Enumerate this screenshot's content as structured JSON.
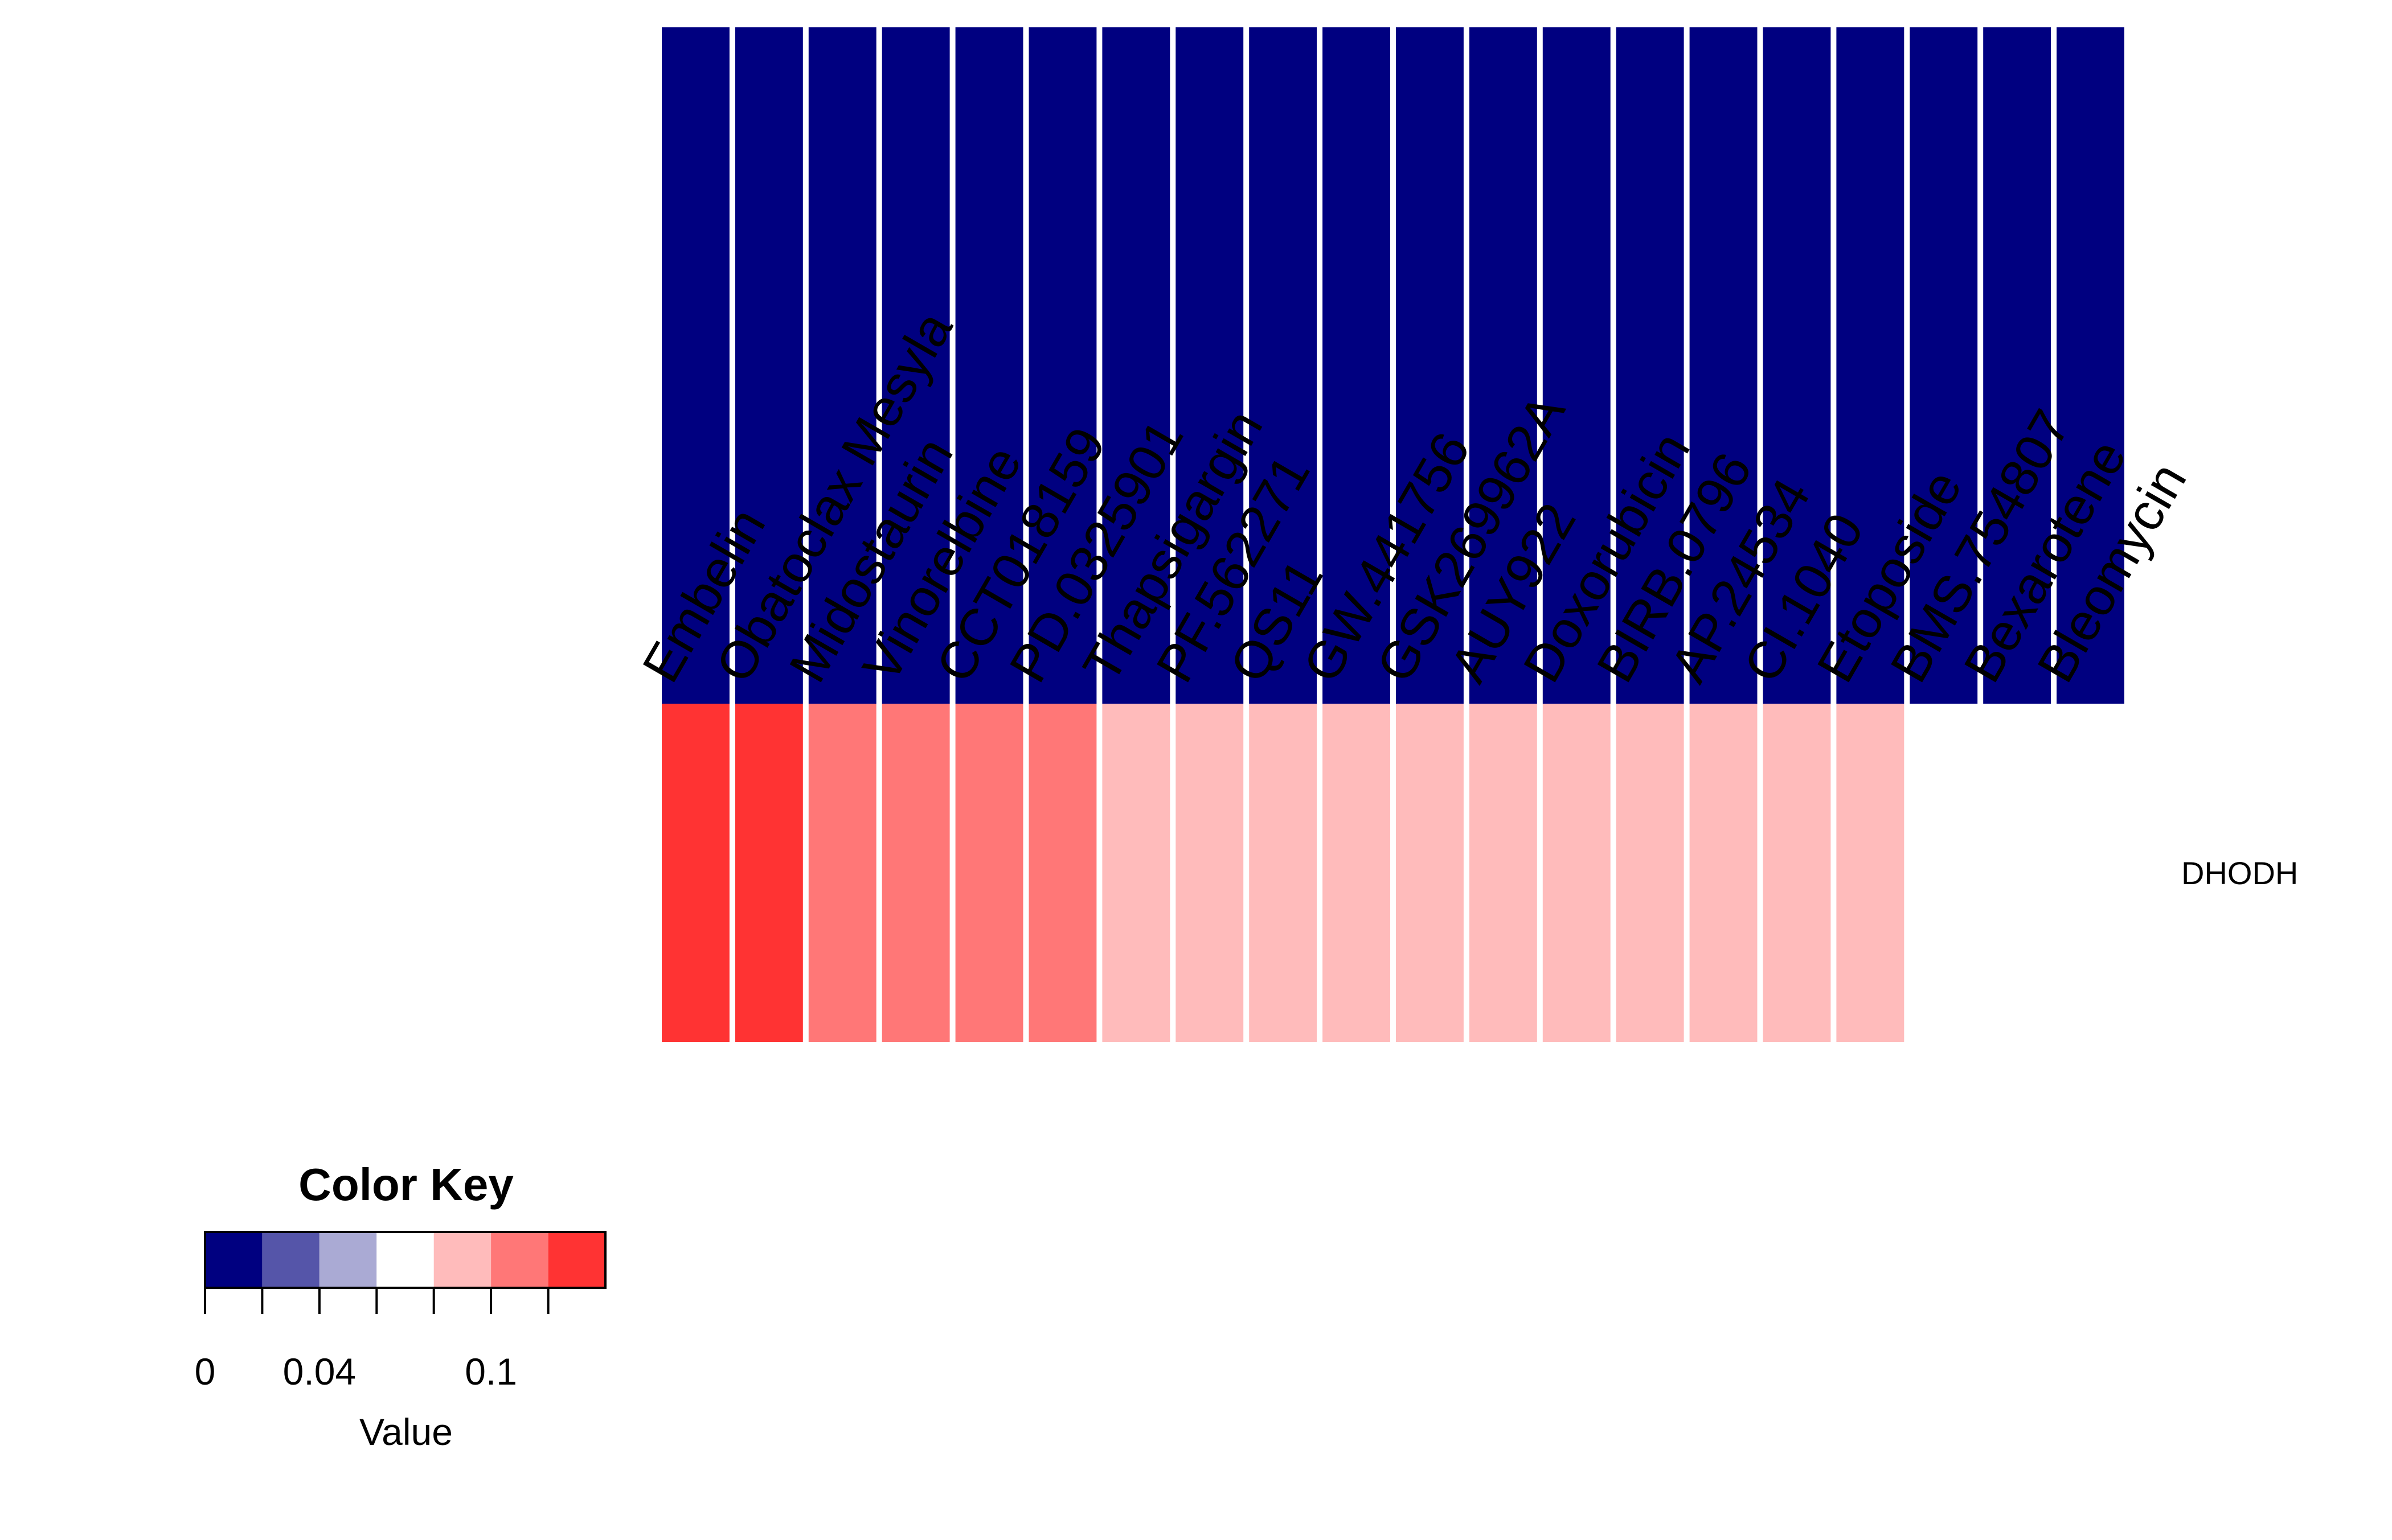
{
  "chart_data": {
    "type": "heatmap",
    "columns": [
      "Embelin",
      "Obatoclax Mesyla",
      "Midostaurin",
      "Vinorelbine",
      "CCT018159",
      "PD.0325901",
      "Thapsigargin",
      "PF.562271",
      "QS11",
      "GW.441756",
      "GSK269962A",
      "AUY922",
      "Doxorubicin",
      "BIRB.0796",
      "AP.24534",
      "CI.1040",
      "Etoposide",
      "BMS.754807",
      "Bexarotene",
      "Bleomycin"
    ],
    "rows": [
      "DHODH"
    ],
    "values": [
      [
        0.13,
        0.13,
        0.11,
        0.11,
        0.11,
        0.11,
        0.09,
        0.09,
        0.09,
        0.09,
        0.09,
        0.09,
        0.09,
        0.09,
        0.09,
        0.09,
        0.09,
        null,
        null,
        null
      ]
    ],
    "color_key": {
      "title": "Color Key",
      "xlabel": "Value",
      "breaks": [
        0,
        0.02,
        0.04,
        0.06,
        0.08,
        0.1,
        0.12,
        0.14
      ],
      "colors": [
        "#000080",
        "#5555A9",
        "#AAAAD4",
        "#FFFFFF",
        "#FFBBBB",
        "#FF7777",
        "#FF3333"
      ],
      "tick_labels": [
        {
          "value": 0,
          "label": "0"
        },
        {
          "value": 0.04,
          "label": "0.04"
        },
        {
          "value": 0.1,
          "label": "0.1"
        }
      ]
    },
    "background_fill": "#000080",
    "text_color": "#000000"
  }
}
